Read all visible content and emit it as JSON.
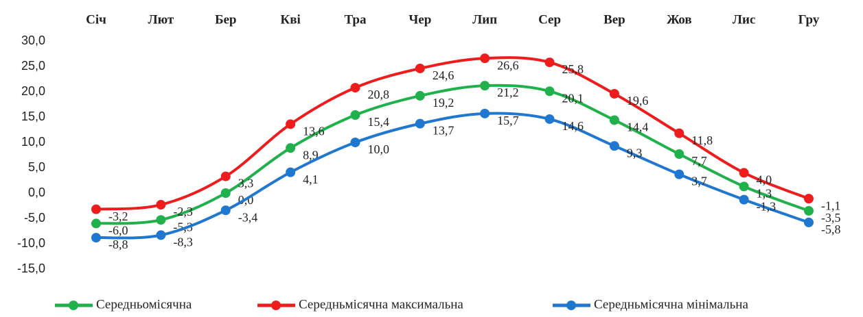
{
  "chart_data": {
    "type": "line",
    "categories": [
      "Січ",
      "Лют",
      "Бер",
      "Кві",
      "Тра",
      "Чер",
      "Лип",
      "Сер",
      "Вер",
      "Жов",
      "Лис",
      "Гру"
    ],
    "series": [
      {
        "name": "Середньомісячна",
        "color": "#21b14c",
        "values": [
          -6.0,
          -5.3,
          0.0,
          8.9,
          15.4,
          19.2,
          21.2,
          20.1,
          14.4,
          7.7,
          1.3,
          -3.5
        ],
        "value_labels": [
          "-6,0",
          "-5,3",
          "0,0",
          "8,9",
          "15,4",
          "19,2",
          "21,2",
          "20,1",
          "14,4",
          "7,7",
          "1,3",
          "-3,5"
        ]
      },
      {
        "name": "Середньмісячна максимальна",
        "color": "#ee1c1c",
        "values": [
          -3.2,
          -2.3,
          3.3,
          13.6,
          20.8,
          24.6,
          26.6,
          25.8,
          19.6,
          11.8,
          4.0,
          -1.1
        ],
        "value_labels": [
          "-3,2",
          "-2,3",
          "3,3",
          "13,6",
          "20,8",
          "24,6",
          "26,6",
          "25,8",
          "19,6",
          "11,8",
          "4,0",
          "-1,1"
        ]
      },
      {
        "name": "Середньмісячна мінімальна",
        "color": "#1f77d0",
        "values": [
          -8.8,
          -8.3,
          -3.4,
          4.1,
          10.0,
          13.7,
          15.7,
          14.6,
          9.3,
          3.7,
          -1.3,
          -5.8
        ],
        "value_labels": [
          "-8,8",
          "-8,3",
          "-3,4",
          "4,1",
          "10,0",
          "13,7",
          "15,7",
          "14,6",
          "9,3",
          "3,7",
          "-1,3",
          "-5,8"
        ]
      }
    ],
    "ylim": [
      -15,
      30
    ],
    "yticks": [
      {
        "value": -15,
        "label": "-15,0"
      },
      {
        "value": -10,
        "label": "-10,0"
      },
      {
        "value": -5,
        "label": "-5,0"
      },
      {
        "value": 0,
        "label": "0,0"
      },
      {
        "value": 5,
        "label": "5,0"
      },
      {
        "value": 10,
        "label": "10,0"
      },
      {
        "value": 15,
        "label": "15,0"
      },
      {
        "value": 20,
        "label": "20,0"
      },
      {
        "value": 25,
        "label": "25,0"
      },
      {
        "value": 30,
        "label": "30,0"
      }
    ],
    "grid": false,
    "legend": "bottom"
  }
}
